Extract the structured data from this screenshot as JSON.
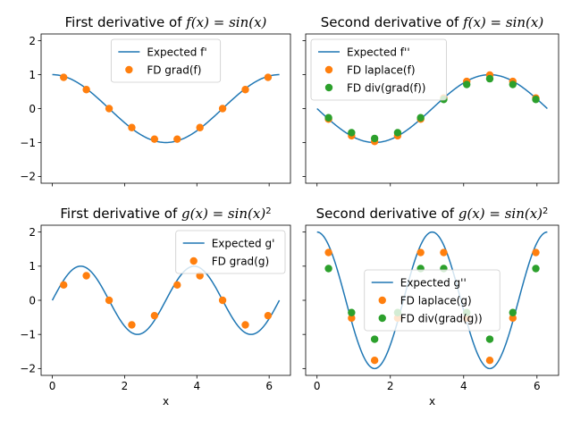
{
  "figure": {
    "colors": {
      "blue": "#1f77b4",
      "orange": "#ff7f0e",
      "green": "#2ca02c"
    }
  },
  "chart_data": [
    {
      "type": "line",
      "title_plain": "First derivative of ",
      "title_math": "f(x) = sin(x)",
      "xlabel": "",
      "ylabel": "",
      "xlim": [
        -0.31,
        6.59
      ],
      "ylim": [
        -2.2,
        2.2
      ],
      "xticks": [
        0,
        2,
        4,
        6
      ],
      "yticks": [
        -2,
        -1,
        0,
        1,
        2
      ],
      "show_xtick_labels": false,
      "show_ytick_labels": true,
      "legend_position": "upper center",
      "curve": {
        "name": "Expected f'",
        "fn": "cos",
        "x_range": [
          0,
          6.283
        ]
      },
      "series": [
        {
          "name": "FD grad(f)",
          "color": "orange",
          "x": [
            0.314,
            0.942,
            1.571,
            2.199,
            2.827,
            3.456,
            4.084,
            4.712,
            5.341,
            5.969
          ],
          "y": [
            0.92,
            0.56,
            0.0,
            -0.56,
            -0.9,
            -0.9,
            -0.56,
            0.0,
            0.56,
            0.92
          ]
        }
      ]
    },
    {
      "type": "line",
      "title_plain": "Second derivative of ",
      "title_math": "f(x) = sin(x)",
      "xlabel": "",
      "ylabel": "",
      "xlim": [
        -0.31,
        6.59
      ],
      "ylim": [
        -2.2,
        2.2
      ],
      "xticks": [
        0,
        2,
        4,
        6
      ],
      "yticks": [
        -2,
        -1,
        0,
        1,
        2
      ],
      "show_xtick_labels": false,
      "show_ytick_labels": false,
      "legend_position": "upper left",
      "curve": {
        "name": "Expected f''",
        "fn": "-sin",
        "x_range": [
          0,
          6.283
        ]
      },
      "series": [
        {
          "name": "FD laplace(f)",
          "color": "orange",
          "x": [
            0.314,
            0.942,
            1.571,
            2.199,
            2.827,
            3.456,
            4.084,
            4.712,
            5.341,
            5.969
          ],
          "y": [
            -0.31,
            -0.8,
            -0.97,
            -0.8,
            -0.31,
            0.31,
            0.8,
            0.99,
            0.8,
            0.31
          ]
        },
        {
          "name": "FD div(grad(f))",
          "color": "green",
          "x": [
            0.314,
            0.942,
            1.571,
            2.199,
            2.827,
            3.456,
            4.084,
            4.712,
            5.341,
            5.969
          ],
          "y": [
            -0.27,
            -0.71,
            -0.88,
            -0.71,
            -0.27,
            0.27,
            0.71,
            0.88,
            0.71,
            0.27
          ]
        }
      ]
    },
    {
      "type": "line",
      "title_plain": "First derivative of ",
      "title_math": "g(x) = sin(x)",
      "title_sup": "2",
      "xlabel": "x",
      "ylabel": "",
      "xlim": [
        -0.31,
        6.59
      ],
      "ylim": [
        -2.2,
        2.2
      ],
      "xticks": [
        0,
        2,
        4,
        6
      ],
      "yticks": [
        -2,
        -1,
        0,
        1,
        2
      ],
      "show_xtick_labels": true,
      "show_ytick_labels": true,
      "legend_position": "upper right",
      "curve": {
        "name": "Expected g'",
        "fn": "sin2x",
        "x_range": [
          0,
          6.283
        ]
      },
      "series": [
        {
          "name": "FD grad(g)",
          "color": "orange",
          "x": [
            0.314,
            0.942,
            1.571,
            2.199,
            2.827,
            3.456,
            4.084,
            4.712,
            5.341,
            5.969
          ],
          "y": [
            0.45,
            0.72,
            0.0,
            -0.72,
            -0.45,
            0.45,
            0.72,
            0.0,
            -0.72,
            -0.45
          ]
        }
      ]
    },
    {
      "type": "line",
      "title_plain": "Second derivative of ",
      "title_math": "g(x) = sin(x)",
      "title_sup": "2",
      "xlabel": "x",
      "ylabel": "",
      "xlim": [
        -0.31,
        6.59
      ],
      "ylim": [
        -2.2,
        2.2
      ],
      "xticks": [
        0,
        2,
        4,
        6
      ],
      "yticks": [
        -2,
        -1,
        0,
        1,
        2
      ],
      "show_xtick_labels": true,
      "show_ytick_labels": false,
      "legend_position": "center",
      "curve": {
        "name": "Expected g''",
        "fn": "2cos2x",
        "x_range": [
          0,
          6.283
        ]
      },
      "series": [
        {
          "name": "FD laplace(g)",
          "color": "orange",
          "x": [
            0.314,
            0.942,
            1.571,
            2.199,
            2.827,
            3.456,
            4.084,
            4.712,
            5.341,
            5.969
          ],
          "y": [
            1.4,
            -0.52,
            -1.76,
            -0.52,
            1.4,
            1.4,
            -0.52,
            -1.76,
            -0.52,
            1.4
          ]
        },
        {
          "name": "FD div(grad(g))",
          "color": "green",
          "x": [
            0.314,
            0.942,
            1.571,
            2.199,
            2.827,
            3.456,
            4.084,
            4.712,
            5.341,
            5.969
          ],
          "y": [
            0.93,
            -0.36,
            -1.14,
            -0.36,
            0.93,
            0.93,
            -0.36,
            -1.14,
            -0.36,
            0.93
          ]
        }
      ]
    }
  ]
}
